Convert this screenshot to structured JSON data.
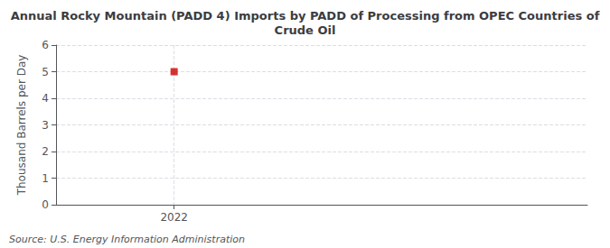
{
  "chart_data": {
    "type": "scatter",
    "title": "Annual Rocky Mountain (PADD 4) Imports by PADD of Processing from OPEC Countries of\nCrude Oil",
    "ylabel": "Thousand Barrels per Day",
    "annotations": [
      "Source: U.S. Energy Information Administration"
    ],
    "x": [
      2022
    ],
    "values": [
      5.0
    ],
    "color": "#cc0000",
    "marker": "square",
    "xlim": [
      2021.6,
      2023.4
    ],
    "xticks": [
      2022
    ],
    "ylim": [
      0,
      6
    ],
    "yticks": [
      0,
      1,
      2,
      3,
      4,
      5,
      6
    ],
    "grid": true
  }
}
